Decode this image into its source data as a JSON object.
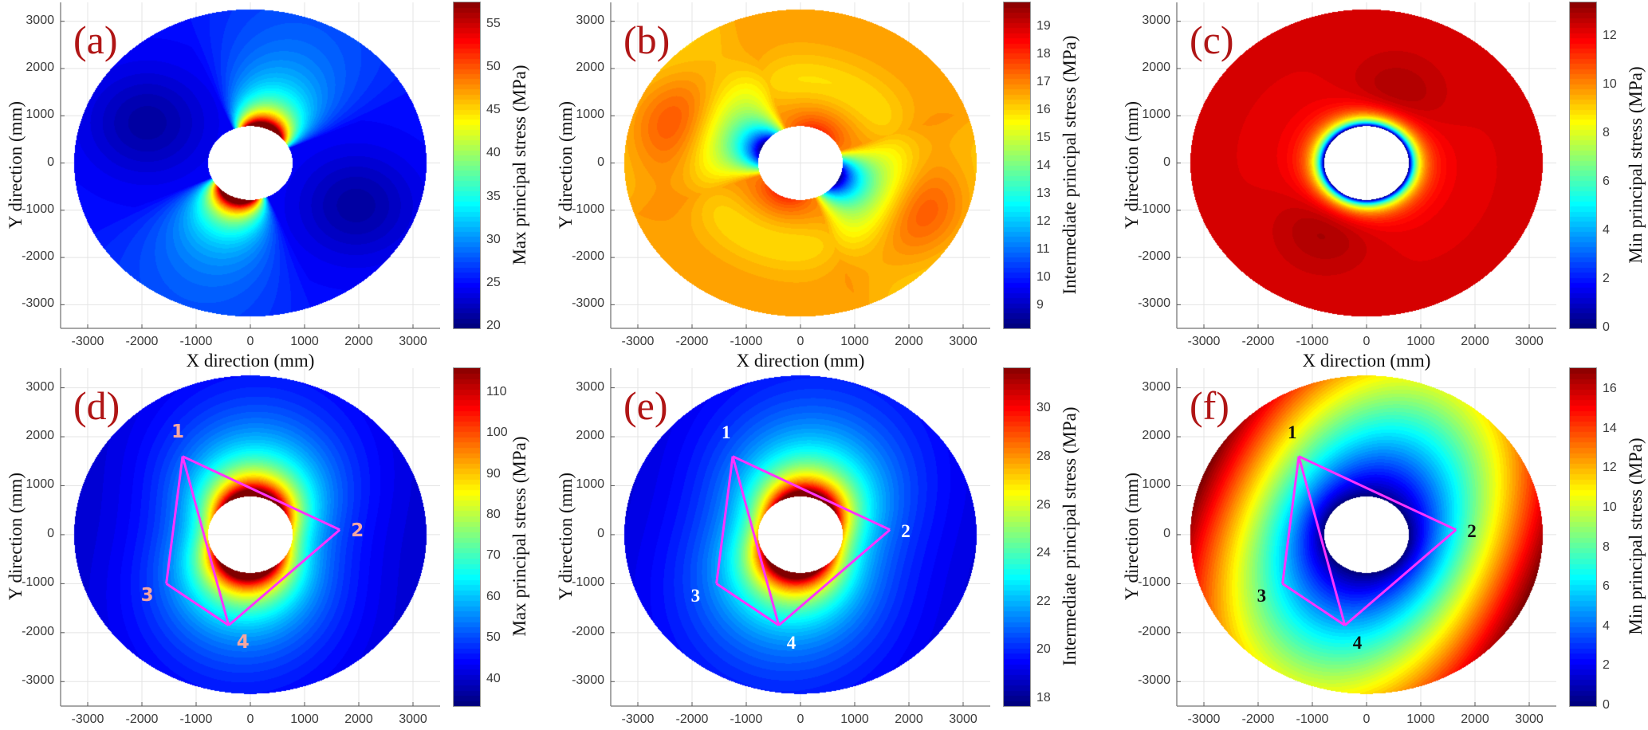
{
  "colors": {
    "panel_label": "#b01515",
    "polygon": "#ff33ff",
    "grid": "#e4e4e4",
    "axis": "#8a8a8a"
  },
  "chart_data": [
    {
      "type": "heatmap",
      "panel_label": "(a)",
      "colormap": "jet",
      "xlabel": "X direction (mm)",
      "ylabel": "Y direction (mm)",
      "colorbar_label": "Max principal stress (MPa)",
      "clim": [
        19.8,
        57.6
      ],
      "colorbar_ticks": [
        20,
        25,
        30,
        35,
        40,
        45,
        50,
        55
      ],
      "xlim": [
        -3500,
        3500
      ],
      "ylim": [
        -3500,
        3400
      ],
      "x_ticks": [
        -3000,
        -2000,
        -1000,
        0,
        1000,
        2000,
        3000
      ],
      "y_ticks": [
        -3000,
        -2000,
        -1000,
        0,
        1000,
        2000,
        3000
      ],
      "grid": true
    },
    {
      "type": "heatmap",
      "panel_label": "(b)",
      "colormap": "jet",
      "xlabel": "X direction (mm)",
      "ylabel": "Y direction (mm)",
      "colorbar_label": "Intermediate principal stress (MPa)",
      "clim": [
        8.2,
        19.9
      ],
      "colorbar_ticks": [
        9,
        10,
        11,
        12,
        13,
        14,
        15,
        16,
        17,
        18,
        19
      ],
      "xlim": [
        -3500,
        3500
      ],
      "ylim": [
        -3500,
        3400
      ],
      "x_ticks": [
        -3000,
        -2000,
        -1000,
        0,
        1000,
        2000,
        3000
      ],
      "y_ticks": [
        -3000,
        -2000,
        -1000,
        0,
        1000,
        2000,
        3000
      ],
      "grid": true
    },
    {
      "type": "heatmap",
      "panel_label": "(c)",
      "colormap": "jet",
      "xlabel": "X direction (mm)",
      "ylabel": "Y direction (mm)",
      "colorbar_label": "Min principal stress (MPa)",
      "clim": [
        0,
        13.4
      ],
      "colorbar_ticks": [
        0,
        2,
        4,
        6,
        8,
        10,
        12
      ],
      "xlim": [
        -3500,
        3500
      ],
      "ylim": [
        -3500,
        3400
      ],
      "x_ticks": [
        -3000,
        -2000,
        -1000,
        0,
        1000,
        2000,
        3000
      ],
      "y_ticks": [
        -3000,
        -2000,
        -1000,
        0,
        1000,
        2000,
        3000
      ],
      "grid": true
    },
    {
      "type": "heatmap",
      "panel_label": "(d)",
      "colormap": "jet",
      "xlabel": "",
      "ylabel": "Y direction (mm)",
      "colorbar_label": "Max principal stress (MPa)",
      "clim": [
        33.5,
        116
      ],
      "colorbar_ticks": [
        40,
        50,
        60,
        70,
        80,
        90,
        100,
        110
      ],
      "xlim": [
        -3500,
        3500
      ],
      "ylim": [
        -3500,
        3400
      ],
      "x_ticks": [
        -3000,
        -2000,
        -1000,
        0,
        1000,
        2000,
        3000
      ],
      "y_ticks": [
        -3000,
        -2000,
        -1000,
        0,
        1000,
        2000,
        3000
      ],
      "grid": true,
      "point_label_color": "#f4a6a0",
      "points": [
        {
          "label": "1",
          "x": -1250,
          "y": 1600
        },
        {
          "label": "2",
          "x": 1650,
          "y": 100
        },
        {
          "label": "3",
          "x": -1550,
          "y": -1000
        },
        {
          "label": "4",
          "x": -400,
          "y": -1850
        }
      ],
      "edges": [
        [
          "1",
          "2"
        ],
        [
          "2",
          "4"
        ],
        [
          "4",
          "3"
        ],
        [
          "3",
          "1"
        ],
        [
          "1",
          "4"
        ]
      ]
    },
    {
      "type": "heatmap",
      "panel_label": "(e)",
      "colormap": "jet",
      "xlabel": "",
      "ylabel": "Y direction (mm)",
      "colorbar_label": "Intermediate principal stress (MPa)",
      "clim": [
        17.7,
        31.7
      ],
      "colorbar_ticks": [
        18,
        20,
        22,
        24,
        26,
        28,
        30
      ],
      "xlim": [
        -3500,
        3500
      ],
      "ylim": [
        -3500,
        3400
      ],
      "x_ticks": [
        -3000,
        -2000,
        -1000,
        0,
        1000,
        2000,
        3000
      ],
      "y_ticks": [
        -3000,
        -2000,
        -1000,
        0,
        1000,
        2000,
        3000
      ],
      "grid": true,
      "point_label_color": "#ffffff",
      "points": [
        {
          "label": "1",
          "x": -1250,
          "y": 1600
        },
        {
          "label": "2",
          "x": 1650,
          "y": 100
        },
        {
          "label": "3",
          "x": -1550,
          "y": -1000
        },
        {
          "label": "4",
          "x": -400,
          "y": -1850
        }
      ],
      "edges": [
        [
          "1",
          "2"
        ],
        [
          "2",
          "4"
        ],
        [
          "4",
          "3"
        ],
        [
          "3",
          "1"
        ],
        [
          "1",
          "4"
        ]
      ]
    },
    {
      "type": "heatmap",
      "panel_label": "(f)",
      "colormap": "jet",
      "xlabel": "",
      "ylabel": "Y direction (mm)",
      "colorbar_label": "Min principal stress (MPa)",
      "clim": [
        0,
        17.1
      ],
      "colorbar_ticks": [
        0,
        2,
        4,
        6,
        8,
        10,
        12,
        14,
        16
      ],
      "xlim": [
        -3500,
        3500
      ],
      "ylim": [
        -3500,
        3400
      ],
      "x_ticks": [
        -3000,
        -2000,
        -1000,
        0,
        1000,
        2000,
        3000
      ],
      "y_ticks": [
        -3000,
        -2000,
        -1000,
        0,
        1000,
        2000,
        3000
      ],
      "grid": true,
      "point_label_color": "#111111",
      "points": [
        {
          "label": "1",
          "x": -1250,
          "y": 1600
        },
        {
          "label": "2",
          "x": 1650,
          "y": 100
        },
        {
          "label": "3",
          "x": -1550,
          "y": -1000
        },
        {
          "label": "4",
          "x": -400,
          "y": -1850
        }
      ],
      "edges": [
        [
          "1",
          "2"
        ],
        [
          "2",
          "4"
        ],
        [
          "4",
          "3"
        ],
        [
          "3",
          "1"
        ],
        [
          "1",
          "4"
        ]
      ]
    }
  ]
}
